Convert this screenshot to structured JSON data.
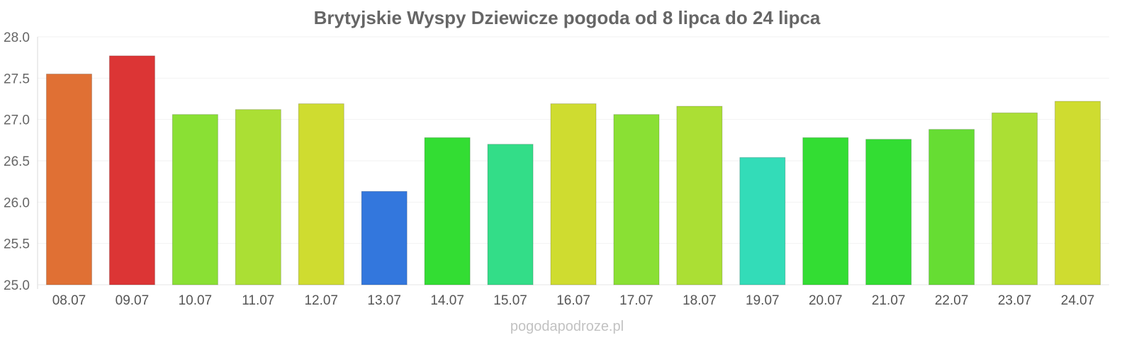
{
  "chart_data": {
    "type": "bar",
    "title": "Brytyjskie Wyspy Dziewicze pogoda od 8 lipca do 24 lipca",
    "xlabel": "",
    "ylabel": "",
    "categories": [
      "08.07",
      "09.07",
      "10.07",
      "11.07",
      "12.07",
      "13.07",
      "14.07",
      "15.07",
      "16.07",
      "17.07",
      "18.07",
      "19.07",
      "20.07",
      "21.07",
      "22.07",
      "23.07",
      "24.07"
    ],
    "values": [
      27.55,
      27.77,
      27.06,
      27.12,
      27.19,
      26.13,
      26.78,
      26.7,
      27.19,
      27.06,
      27.16,
      26.54,
      26.78,
      26.76,
      26.88,
      27.08,
      27.22
    ],
    "colors": [
      "#e07034",
      "#dc3535",
      "#8ae034",
      "#abdf34",
      "#cfdc30",
      "#3377dd",
      "#33dd33",
      "#33dd88",
      "#cfdc30",
      "#8ae034",
      "#abdf34",
      "#33dcb8",
      "#33dd33",
      "#33dd33",
      "#66dd33",
      "#abdf34",
      "#cfdc30"
    ],
    "ylim": [
      25.0,
      28.0
    ],
    "yticks": [
      "25.0",
      "25.5",
      "26.0",
      "26.5",
      "27.0",
      "27.5",
      "28.0"
    ],
    "grid": true,
    "legend": "none"
  },
  "watermark": "pogodapodroze.pl"
}
